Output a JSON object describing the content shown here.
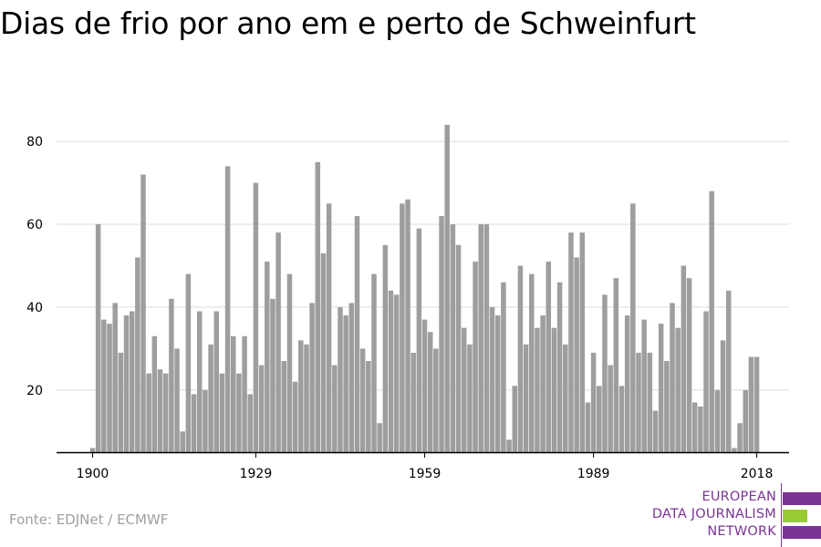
{
  "title": "Dias de frio por ano em e perto de Schweinfurt",
  "source": "Fonte: EDJNet / ECMWF",
  "logo": {
    "lines": [
      "EUROPEAN",
      "DATA JOURNALISM",
      "NETWORK"
    ],
    "colors": {
      "purple": "#7a3593",
      "green": "#99cc33"
    }
  },
  "colors": {
    "bar": "#9e9e9e",
    "grid": "#dcdcdc",
    "axis": "#000000"
  },
  "chart_data": {
    "type": "bar",
    "x": [
      1900,
      1901,
      1902,
      1903,
      1904,
      1905,
      1906,
      1907,
      1908,
      1909,
      1910,
      1911,
      1912,
      1913,
      1914,
      1915,
      1916,
      1917,
      1918,
      1919,
      1920,
      1921,
      1922,
      1923,
      1924,
      1925,
      1926,
      1927,
      1928,
      1929,
      1930,
      1931,
      1932,
      1933,
      1934,
      1935,
      1936,
      1937,
      1938,
      1939,
      1940,
      1941,
      1942,
      1943,
      1944,
      1945,
      1946,
      1947,
      1948,
      1949,
      1950,
      1951,
      1952,
      1953,
      1954,
      1955,
      1956,
      1957,
      1958,
      1959,
      1960,
      1961,
      1962,
      1963,
      1964,
      1965,
      1966,
      1967,
      1968,
      1969,
      1970,
      1971,
      1972,
      1973,
      1974,
      1975,
      1976,
      1977,
      1978,
      1979,
      1980,
      1981,
      1982,
      1983,
      1984,
      1985,
      1986,
      1987,
      1988,
      1989,
      1990,
      1991,
      1992,
      1993,
      1994,
      1995,
      1996,
      1997,
      1998,
      1999,
      2000,
      2001,
      2002,
      2003,
      2004,
      2005,
      2006,
      2007,
      2008,
      2009,
      2010,
      2011,
      2012,
      2013,
      2014,
      2015,
      2016,
      2017,
      2018
    ],
    "values": [
      6,
      60,
      37,
      36,
      41,
      29,
      38,
      39,
      52,
      72,
      24,
      33,
      25,
      24,
      42,
      30,
      10,
      48,
      19,
      39,
      20,
      31,
      39,
      24,
      74,
      33,
      24,
      33,
      19,
      70,
      26,
      51,
      42,
      58,
      27,
      48,
      22,
      32,
      31,
      41,
      75,
      53,
      65,
      26,
      40,
      38,
      41,
      62,
      30,
      27,
      48,
      12,
      55,
      44,
      43,
      65,
      66,
      29,
      59,
      37,
      34,
      30,
      62,
      84,
      60,
      55,
      35,
      31,
      51,
      60,
      60,
      40,
      38,
      46,
      8,
      21,
      50,
      31,
      48,
      35,
      38,
      51,
      35,
      46,
      31,
      58,
      52,
      58,
      17,
      29,
      21,
      43,
      26,
      47,
      21,
      38,
      65,
      29,
      37,
      29,
      15,
      36,
      27,
      41,
      35,
      50,
      47,
      17,
      16,
      39,
      68,
      20,
      32,
      44,
      6,
      12,
      20,
      28,
      28
    ],
    "xticks": [
      "1900",
      "1929",
      "1959",
      "1989",
      "2018"
    ],
    "yticks": [
      "20",
      "40",
      "60",
      "80"
    ],
    "ylim": [
      5,
      90
    ],
    "xlabel": "",
    "ylabel": "",
    "grid": true,
    "legend": "none"
  }
}
